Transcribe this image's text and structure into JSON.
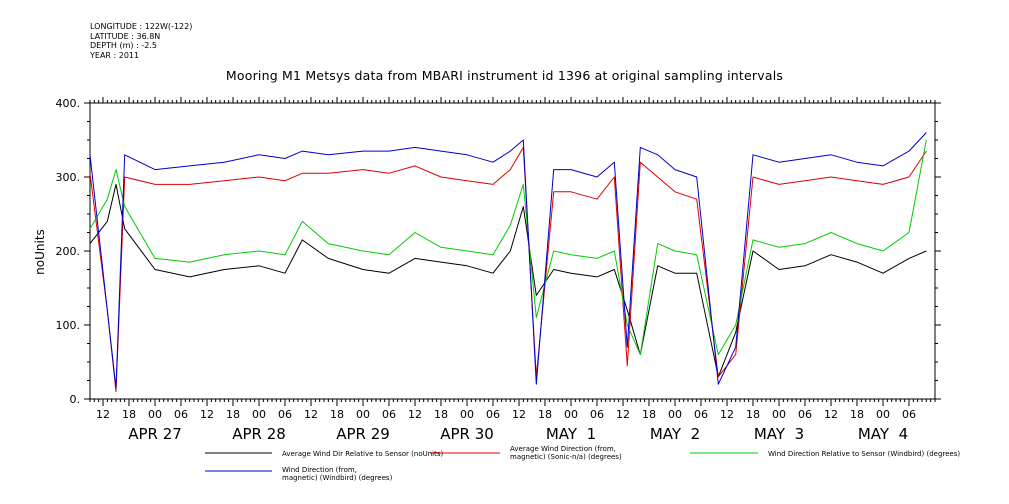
{
  "meta": {
    "longitude": "LONGITUDE : 122W(-122)",
    "latitude": "LATITUDE : 36.8N",
    "depth": "DEPTH (m) : -2.5",
    "year": "YEAR : 2011"
  },
  "chart_data": {
    "type": "line",
    "title": "Mooring M1 Metsys data from MBARI instrument id 1396 at original sampling intervals",
    "xlabel": "",
    "ylabel": "noUnits",
    "xlim": [
      "2011-04-26T09:00",
      "2011-05-04T12:00"
    ],
    "ylim": [
      0,
      400
    ],
    "yticks": [
      0,
      100,
      200,
      300,
      400
    ],
    "ytick_labels": [
      "0.",
      "100.",
      "200.",
      "300.",
      "400."
    ],
    "hour_ticks": [
      {
        "t": "2011-04-26T12:00",
        "label": "12"
      },
      {
        "t": "2011-04-26T18:00",
        "label": "18"
      },
      {
        "t": "2011-04-27T00:00",
        "label": "00"
      },
      {
        "t": "2011-04-27T06:00",
        "label": "06"
      },
      {
        "t": "2011-04-27T12:00",
        "label": "12"
      },
      {
        "t": "2011-04-27T18:00",
        "label": "18"
      },
      {
        "t": "2011-04-28T00:00",
        "label": "00"
      },
      {
        "t": "2011-04-28T06:00",
        "label": "06"
      },
      {
        "t": "2011-04-28T12:00",
        "label": "12"
      },
      {
        "t": "2011-04-28T18:00",
        "label": "18"
      },
      {
        "t": "2011-04-29T00:00",
        "label": "00"
      },
      {
        "t": "2011-04-29T06:00",
        "label": "06"
      },
      {
        "t": "2011-04-29T12:00",
        "label": "12"
      },
      {
        "t": "2011-04-29T18:00",
        "label": "18"
      },
      {
        "t": "2011-04-30T00:00",
        "label": "00"
      },
      {
        "t": "2011-04-30T06:00",
        "label": "06"
      },
      {
        "t": "2011-04-30T12:00",
        "label": "12"
      },
      {
        "t": "2011-04-30T18:00",
        "label": "18"
      },
      {
        "t": "2011-05-01T00:00",
        "label": "00"
      },
      {
        "t": "2011-05-01T06:00",
        "label": "06"
      },
      {
        "t": "2011-05-01T12:00",
        "label": "12"
      },
      {
        "t": "2011-05-01T18:00",
        "label": "18"
      },
      {
        "t": "2011-05-02T00:00",
        "label": "00"
      },
      {
        "t": "2011-05-02T06:00",
        "label": "06"
      },
      {
        "t": "2011-05-02T12:00",
        "label": "12"
      },
      {
        "t": "2011-05-02T18:00",
        "label": "18"
      },
      {
        "t": "2011-05-03T00:00",
        "label": "00"
      },
      {
        "t": "2011-05-03T06:00",
        "label": "06"
      },
      {
        "t": "2011-05-03T12:00",
        "label": "12"
      },
      {
        "t": "2011-05-03T18:00",
        "label": "18"
      },
      {
        "t": "2011-05-04T00:00",
        "label": "00"
      },
      {
        "t": "2011-05-04T06:00",
        "label": "06"
      }
    ],
    "day_labels": [
      {
        "t": "2011-04-27T00:00",
        "label": "APR 27"
      },
      {
        "t": "2011-04-28T00:00",
        "label": "APR 28"
      },
      {
        "t": "2011-04-29T00:00",
        "label": "APR 29"
      },
      {
        "t": "2011-04-30T00:00",
        "label": "APR 30"
      },
      {
        "t": "2011-05-01T00:00",
        "label": "MAY  1"
      },
      {
        "t": "2011-05-02T00:00",
        "label": "MAY  2"
      },
      {
        "t": "2011-05-03T00:00",
        "label": "MAY  3"
      },
      {
        "t": "2011-05-04T00:00",
        "label": "MAY  4"
      }
    ],
    "series": [
      {
        "name": "Average Wind Dir Relative to Sensor (noUnits)",
        "color": "#000000",
        "x": [
          "2011-04-26T09:00",
          "2011-04-26T13:00",
          "2011-04-26T15:00",
          "2011-04-26T17:00",
          "2011-04-27T00:00",
          "2011-04-27T08:00",
          "2011-04-27T16:00",
          "2011-04-28T00:00",
          "2011-04-28T06:00",
          "2011-04-28T10:00",
          "2011-04-28T16:00",
          "2011-04-29T00:00",
          "2011-04-29T06:00",
          "2011-04-29T12:00",
          "2011-04-29T18:00",
          "2011-04-30T00:00",
          "2011-04-30T06:00",
          "2011-04-30T10:00",
          "2011-04-30T13:00",
          "2011-04-30T16:00",
          "2011-04-30T20:00",
          "2011-05-01T00:00",
          "2011-05-01T06:00",
          "2011-05-01T10:00",
          "2011-05-01T13:00",
          "2011-05-01T16:00",
          "2011-05-01T20:00",
          "2011-05-02T00:00",
          "2011-05-02T05:00",
          "2011-05-02T10:00",
          "2011-05-02T14:00",
          "2011-05-02T18:00",
          "2011-05-03T00:00",
          "2011-05-03T06:00",
          "2011-05-03T12:00",
          "2011-05-03T18:00",
          "2011-05-04T00:00",
          "2011-05-04T06:00",
          "2011-05-04T10:00"
        ],
        "values": [
          210,
          240,
          290,
          230,
          175,
          165,
          175,
          180,
          170,
          215,
          190,
          175,
          170,
          190,
          185,
          180,
          170,
          200,
          260,
          140,
          175,
          170,
          165,
          175,
          120,
          60,
          180,
          170,
          170,
          30,
          90,
          200,
          175,
          180,
          195,
          185,
          170,
          190,
          200
        ]
      },
      {
        "name": "Average Wind Direction (from, magnetic) (Sonic-n/a) (degrees)",
        "color": "#dd0000",
        "x": [
          "2011-04-26T09:00",
          "2011-04-26T13:00",
          "2011-04-26T15:00",
          "2011-04-26T17:00",
          "2011-04-27T00:00",
          "2011-04-27T08:00",
          "2011-04-27T16:00",
          "2011-04-28T00:00",
          "2011-04-28T06:00",
          "2011-04-28T10:00",
          "2011-04-28T16:00",
          "2011-04-29T00:00",
          "2011-04-29T06:00",
          "2011-04-29T12:00",
          "2011-04-29T18:00",
          "2011-04-30T00:00",
          "2011-04-30T06:00",
          "2011-04-30T10:00",
          "2011-04-30T13:00",
          "2011-04-30T16:00",
          "2011-04-30T20:00",
          "2011-05-01T00:00",
          "2011-05-01T06:00",
          "2011-05-01T10:00",
          "2011-05-01T13:00",
          "2011-05-01T16:00",
          "2011-05-01T20:00",
          "2011-05-02T00:00",
          "2011-05-02T05:00",
          "2011-05-02T10:00",
          "2011-05-02T14:00",
          "2011-05-02T18:00",
          "2011-05-03T00:00",
          "2011-05-03T06:00",
          "2011-05-03T12:00",
          "2011-05-03T18:00",
          "2011-05-04T00:00",
          "2011-05-04T06:00",
          "2011-05-04T10:00"
        ],
        "values": [
          305,
          120,
          10,
          300,
          290,
          290,
          295,
          300,
          295,
          305,
          305,
          310,
          305,
          315,
          300,
          295,
          290,
          310,
          340,
          30,
          280,
          280,
          270,
          300,
          45,
          320,
          300,
          280,
          270,
          30,
          60,
          300,
          290,
          295,
          300,
          295,
          290,
          300,
          335
        ]
      },
      {
        "name": "Wind Direction Relative to Sensor (Windbird) (degrees)",
        "color": "#00cc00",
        "x": [
          "2011-04-26T09:00",
          "2011-04-26T13:00",
          "2011-04-26T15:00",
          "2011-04-26T17:00",
          "2011-04-27T00:00",
          "2011-04-27T08:00",
          "2011-04-27T16:00",
          "2011-04-28T00:00",
          "2011-04-28T06:00",
          "2011-04-28T10:00",
          "2011-04-28T16:00",
          "2011-04-29T00:00",
          "2011-04-29T06:00",
          "2011-04-29T12:00",
          "2011-04-29T18:00",
          "2011-04-30T00:00",
          "2011-04-30T06:00",
          "2011-04-30T10:00",
          "2011-04-30T13:00",
          "2011-04-30T16:00",
          "2011-04-30T20:00",
          "2011-05-01T00:00",
          "2011-05-01T06:00",
          "2011-05-01T10:00",
          "2011-05-01T13:00",
          "2011-05-01T16:00",
          "2011-05-01T20:00",
          "2011-05-02T00:00",
          "2011-05-02T05:00",
          "2011-05-02T10:00",
          "2011-05-02T14:00",
          "2011-05-02T18:00",
          "2011-05-03T00:00",
          "2011-05-03T06:00",
          "2011-05-03T12:00",
          "2011-05-03T18:00",
          "2011-05-04T00:00",
          "2011-05-04T06:00",
          "2011-05-04T10:00"
        ],
        "values": [
          230,
          270,
          310,
          260,
          190,
          185,
          195,
          200,
          195,
          240,
          210,
          200,
          195,
          225,
          205,
          200,
          195,
          235,
          290,
          110,
          200,
          195,
          190,
          200,
          100,
          60,
          210,
          200,
          195,
          60,
          100,
          215,
          205,
          210,
          225,
          210,
          200,
          225,
          350
        ]
      },
      {
        "name": "Wind Direction (from, magnetic) (Windbird) (degrees)",
        "color": "#0000cc",
        "x": [
          "2011-04-26T09:00",
          "2011-04-26T13:00",
          "2011-04-26T15:00",
          "2011-04-26T17:00",
          "2011-04-27T00:00",
          "2011-04-27T08:00",
          "2011-04-27T16:00",
          "2011-04-28T00:00",
          "2011-04-28T06:00",
          "2011-04-28T10:00",
          "2011-04-28T16:00",
          "2011-04-29T00:00",
          "2011-04-29T06:00",
          "2011-04-29T12:00",
          "2011-04-29T18:00",
          "2011-04-30T00:00",
          "2011-04-30T06:00",
          "2011-04-30T10:00",
          "2011-04-30T13:00",
          "2011-04-30T16:00",
          "2011-04-30T20:00",
          "2011-05-01T00:00",
          "2011-05-01T06:00",
          "2011-05-01T10:00",
          "2011-05-01T13:00",
          "2011-05-01T16:00",
          "2011-05-01T20:00",
          "2011-05-02T00:00",
          "2011-05-02T05:00",
          "2011-05-02T10:00",
          "2011-05-02T14:00",
          "2011-05-02T18:00",
          "2011-05-03T00:00",
          "2011-05-03T06:00",
          "2011-05-03T12:00",
          "2011-05-03T18:00",
          "2011-05-04T00:00",
          "2011-05-04T06:00",
          "2011-05-04T10:00"
        ],
        "values": [
          330,
          120,
          15,
          330,
          310,
          315,
          320,
          330,
          325,
          335,
          330,
          335,
          335,
          340,
          335,
          330,
          320,
          335,
          350,
          20,
          310,
          310,
          300,
          320,
          70,
          340,
          330,
          310,
          300,
          20,
          70,
          330,
          320,
          325,
          330,
          320,
          315,
          335,
          360
        ]
      }
    ],
    "legend": [
      {
        "label": "Average Wind Dir Relative to Sensor (noUnits)",
        "color": "#000000"
      },
      {
        "label": "Average Wind Direction (from, magnetic) (Sonic-n/a) (degrees)",
        "color": "#dd0000"
      },
      {
        "label": "Wind Direction Relative to Sensor (Windbird) (degrees)",
        "color": "#00cc00"
      },
      {
        "label": "Wind Direction (from, magnetic) (Windbird) (degrees)",
        "color": "#0000cc"
      }
    ],
    "legend_placement": "bottom",
    "grid": false
  }
}
